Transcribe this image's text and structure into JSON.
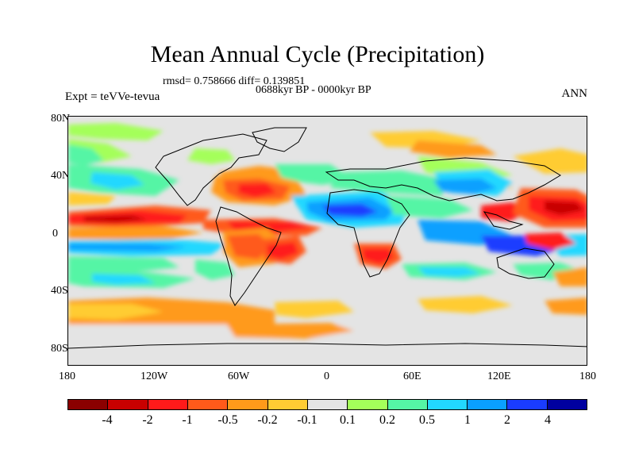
{
  "figure": {
    "title": "Mean Annual Cycle (Precipitation)",
    "stats": "rmsd= 0.758666  diff= 0.139851",
    "period": "0688kyr BP - 0000kyr BP",
    "experiment": "Expt = teVVe-tevua",
    "season": "ANN"
  },
  "axes": {
    "y_ticks": [
      "80N",
      "40N",
      "0",
      "40S",
      "80S"
    ],
    "x_ticks": [
      "180",
      "120W",
      "60W",
      "0",
      "60E",
      "120E",
      "180"
    ]
  },
  "colorbar": {
    "colors": [
      "#8b0000",
      "#c80000",
      "#ff1a1a",
      "#ff5a1a",
      "#ff9a1a",
      "#ffcc33",
      "#e4e4e4",
      "#a4ff5a",
      "#55f5a5",
      "#22d8ff",
      "#0aa0ff",
      "#1a3cff",
      "#0000a0"
    ],
    "labels": [
      "-4",
      "-2",
      "-1",
      "-0.5",
      "-0.2",
      "-0.1",
      "0.1",
      "0.2",
      "0.5",
      "1",
      "2",
      "4"
    ]
  }
}
